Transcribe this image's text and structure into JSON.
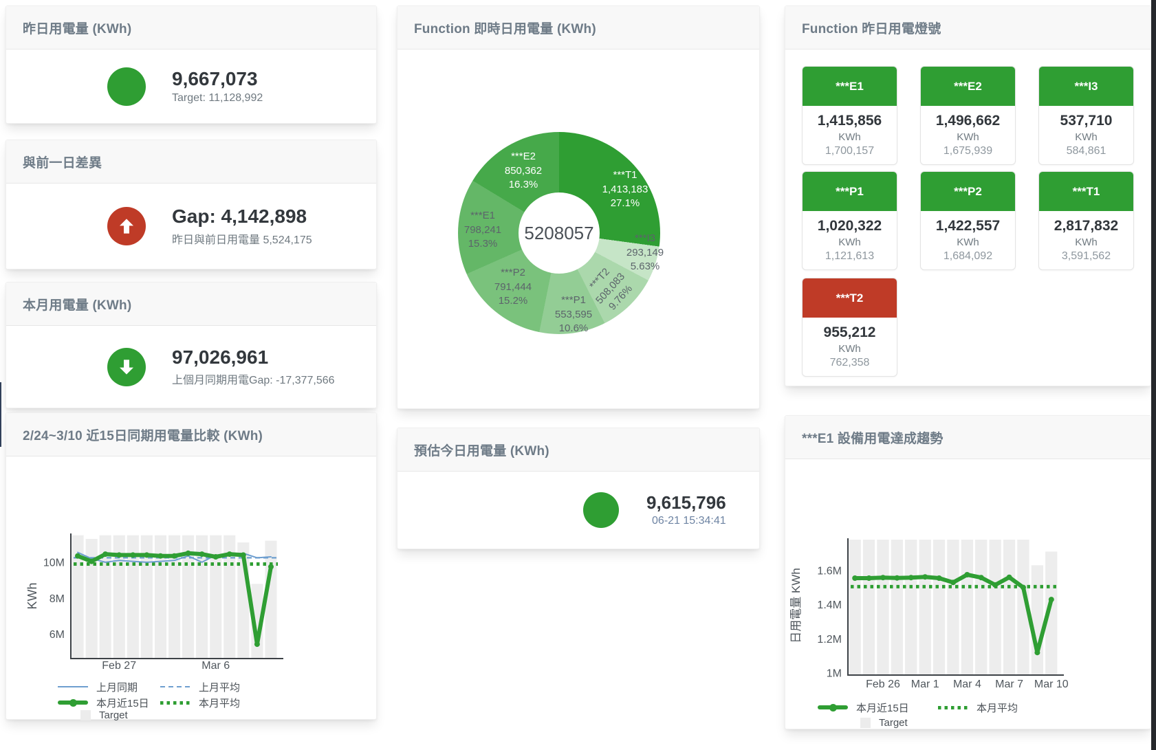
{
  "cards": {
    "yesterday": {
      "title": "昨日用電量 (KWh)",
      "value": "9,667,073",
      "subtitle": "Target: 11,128,992"
    },
    "day_gap": {
      "title": "與前一日差異",
      "value": "Gap: 4,142,898",
      "subtitle": "昨日與前日用電量 5,524,175"
    },
    "month": {
      "title": "本月用電量 (KWh)",
      "value": "97,026,961",
      "subtitle": "上個月同期用電Gap: -17,377,566"
    },
    "estimate": {
      "title": "預估今日用電量 (KWh)",
      "value": "9,615,796",
      "subtitle": "06-21 15:34:41"
    },
    "lights": {
      "title": "Function 昨日用電燈號",
      "items": [
        {
          "label": "***E1",
          "value": "1,415,856",
          "unit": "KWh",
          "prev": "1,700,157",
          "status": "green"
        },
        {
          "label": "***E2",
          "value": "1,496,662",
          "unit": "KWh",
          "prev": "1,675,939",
          "status": "green"
        },
        {
          "label": "***I3",
          "value": "537,710",
          "unit": "KWh",
          "prev": "584,861",
          "status": "green"
        },
        {
          "label": "***P1",
          "value": "1,020,322",
          "unit": "KWh",
          "prev": "1,121,613",
          "status": "green"
        },
        {
          "label": "***P2",
          "value": "1,422,557",
          "unit": "KWh",
          "prev": "1,684,092",
          "status": "green"
        },
        {
          "label": "***T1",
          "value": "2,817,832",
          "unit": "KWh",
          "prev": "3,591,562",
          "status": "green"
        },
        {
          "label": "***T2",
          "value": "955,212",
          "unit": "KWh",
          "prev": "762,358",
          "status": "red"
        }
      ]
    }
  },
  "colors": {
    "green": "#2f9e33",
    "red": "#bf3b27",
    "blue": "#6d9ecf",
    "target_bar": "#ededed",
    "axis": "#3c4146",
    "tick_text": "#4f565c"
  },
  "chart_data": [
    {
      "id": "realtime-donut",
      "type": "pie",
      "title": "Function 即時日用電量 (KWh)",
      "center_label": "5208057",
      "slices": [
        {
          "name": "***T1",
          "value": 1413183,
          "value_text": "1,413,183",
          "pct": 27.1,
          "pct_text": "27.1%",
          "color": "#2f9e33",
          "label_color": "#ffffff"
        },
        {
          "name": "***I3",
          "value": 293149,
          "value_text": "293,149",
          "pct": 5.63,
          "pct_text": "5.63%",
          "color": "#c6e5c7",
          "label_color": "#5c646b",
          "label_outside": true
        },
        {
          "name": "***T2",
          "value": 508083,
          "value_text": "508,083",
          "pct": 9.76,
          "pct_text": "9.76%",
          "color": "#abd8ac",
          "label_color": "#5c646b",
          "label_rotate": -48
        },
        {
          "name": "***P1",
          "value": 553595,
          "value_text": "553,595",
          "pct": 10.6,
          "pct_text": "10.6%",
          "color": "#93cd95",
          "label_color": "#5c646b"
        },
        {
          "name": "***P2",
          "value": 791444,
          "value_text": "791,444",
          "pct": 15.2,
          "pct_text": "15.2%",
          "color": "#7ac27c",
          "label_color": "#5c646b"
        },
        {
          "name": "***E1",
          "value": 798241,
          "value_text": "798,241",
          "pct": 15.3,
          "pct_text": "15.3%",
          "color": "#64b767",
          "label_color": "#5c646b"
        },
        {
          "name": "***E2",
          "value": 850362,
          "value_text": "850,362",
          "pct": 16.3,
          "pct_text": "16.3%",
          "color": "#46a94a",
          "label_color": "#ffffff"
        }
      ]
    },
    {
      "id": "compare-15day",
      "type": "line",
      "title": "2/24~3/10 近15日同期用電量比較 (KWh)",
      "ylabel": "KWh",
      "ylim": [
        4.65,
        11.6
      ],
      "yticks": [
        {
          "v": 6,
          "label": "6M"
        },
        {
          "v": 8,
          "label": "8M"
        },
        {
          "v": 10,
          "label": "10M"
        }
      ],
      "xticks": [
        {
          "i": 3,
          "label": "Feb 27"
        },
        {
          "i": 10,
          "label": "Mar 6"
        }
      ],
      "target_bars": {
        "name": "Target",
        "unit": "M KWh",
        "values": [
          11.5,
          11.3,
          11.5,
          11.5,
          11.5,
          11.5,
          11.5,
          11.5,
          11.5,
          11.5,
          11.5,
          11.5,
          11.1,
          8.8,
          11.2
        ]
      },
      "series": [
        {
          "name": "上月同期",
          "style": "thin",
          "color": "#6d9ecf",
          "unit": "M KWh",
          "values": [
            10.55,
            10.2,
            10.0,
            10.1,
            10.05,
            10.0,
            10.05,
            10.1,
            10.35,
            10.0,
            10.4,
            10.4,
            10.5,
            10.25,
            10.3
          ]
        },
        {
          "name": "上月平均",
          "style": "dashed",
          "color": "#6d9ecf",
          "unit": "M KWh",
          "avg": 10.25
        },
        {
          "name": "本月近15日",
          "style": "thick",
          "color": "#2f9e33",
          "unit": "M KWh",
          "values": [
            10.35,
            10.05,
            10.45,
            10.4,
            10.4,
            10.4,
            10.35,
            10.35,
            10.5,
            10.45,
            10.3,
            10.45,
            10.4,
            5.45,
            9.75
          ]
        },
        {
          "name": "本月平均",
          "style": "dotted",
          "color": "#2f9e33",
          "unit": "M KWh",
          "avg": 9.9
        }
      ],
      "legend": [
        [
          {
            "swatch": "thin",
            "color": "#6d9ecf",
            "label": "上月同期"
          },
          {
            "swatch": "dashed",
            "color": "#6d9ecf",
            "label": "上月平均"
          }
        ],
        [
          {
            "swatch": "thick",
            "color": "#2f9e33",
            "label": "本月近15日"
          },
          {
            "swatch": "dotted",
            "color": "#2f9e33",
            "label": "本月平均"
          }
        ],
        [
          {
            "swatch": "square",
            "color": "#ececec",
            "label": "Target"
          }
        ]
      ]
    },
    {
      "id": "e1-trend",
      "type": "line",
      "title": "***E1 設備用電達成趨勢",
      "ylabel": "日用電量 KWh",
      "ylim": [
        0.988,
        1.788
      ],
      "yticks": [
        {
          "v": 1,
          "label": "1M"
        },
        {
          "v": 1.2,
          "label": "1.2M"
        },
        {
          "v": 1.4,
          "label": "1.4M"
        },
        {
          "v": 1.6,
          "label": "1.6M"
        }
      ],
      "xticks": [
        {
          "i": 2,
          "label": "Feb 26"
        },
        {
          "i": 5,
          "label": "Mar 1"
        },
        {
          "i": 8,
          "label": "Mar 4"
        },
        {
          "i": 11,
          "label": "Mar 7"
        },
        {
          "i": 14,
          "label": "Mar 10"
        }
      ],
      "target_bars": {
        "name": "Target",
        "unit": "M KWh",
        "values": [
          1.78,
          1.78,
          1.78,
          1.78,
          1.78,
          1.78,
          1.78,
          1.78,
          1.78,
          1.78,
          1.78,
          1.78,
          1.78,
          1.63,
          1.71
        ]
      },
      "series": [
        {
          "name": "本月近15日",
          "style": "thick",
          "color": "#2f9e33",
          "unit": "M KWh",
          "values": [
            1.555,
            1.555,
            1.558,
            1.556,
            1.558,
            1.562,
            1.555,
            1.53,
            1.575,
            1.558,
            1.515,
            1.56,
            1.5,
            1.12,
            1.43
          ]
        },
        {
          "name": "本月平均",
          "style": "dotted",
          "color": "#2f9e33",
          "unit": "M KWh",
          "avg": 1.505
        }
      ],
      "legend": [
        [
          {
            "swatch": "thick",
            "color": "#2f9e33",
            "label": "本月近15日"
          },
          {
            "swatch": "dotted",
            "color": "#2f9e33",
            "label": "本月平均"
          }
        ],
        [
          {
            "swatch": "square",
            "color": "#ececec",
            "label": "Target"
          }
        ]
      ]
    }
  ]
}
